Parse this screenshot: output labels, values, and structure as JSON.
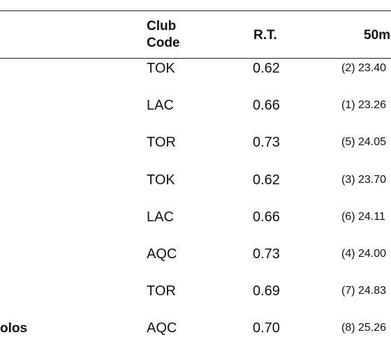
{
  "table": {
    "columns": [
      "Club Code",
      "R.T.",
      "50m"
    ],
    "rows": [
      {
        "club": "TOK",
        "rt": "0.62",
        "split": "(2) 23.40"
      },
      {
        "club": "LAC",
        "rt": "0.66",
        "split": "(1) 23.26"
      },
      {
        "club": "TOR",
        "rt": "0.73",
        "split": "(5) 24.05"
      },
      {
        "club": "TOK",
        "rt": "0.62",
        "split": "(3) 23.70"
      },
      {
        "club": "LAC",
        "rt": "0.66",
        "split": "(6) 24.11"
      },
      {
        "club": "AQC",
        "rt": "0.73",
        "split": "(4) 24.00"
      },
      {
        "club": "TOR",
        "rt": "0.69",
        "split": "(7) 24.83"
      },
      {
        "name": "olos",
        "club": "AQC",
        "rt": "0.70",
        "split": "(8) 25.26"
      }
    ]
  }
}
